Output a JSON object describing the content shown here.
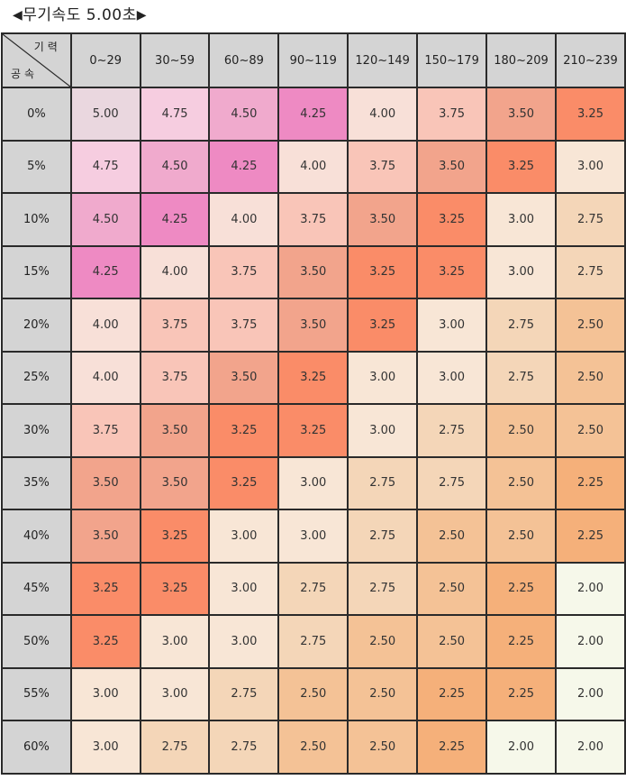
{
  "title": {
    "left_arrow": "◀",
    "text": "무기속도 5.00초",
    "right_arrow": "▶"
  },
  "table": {
    "corner_top": "기력",
    "corner_bottom": "공속",
    "columns": [
      "0~29",
      "30~59",
      "60~89",
      "90~119",
      "120~149",
      "150~179",
      "180~209",
      "210~239"
    ],
    "rows": [
      "0%",
      "5%",
      "10%",
      "15%",
      "20%",
      "25%",
      "30%",
      "35%",
      "40%",
      "45%",
      "50%",
      "55%",
      "60%"
    ],
    "values": [
      [
        "5.00",
        "4.75",
        "4.50",
        "4.25",
        "4.00",
        "3.75",
        "3.50",
        "3.25"
      ],
      [
        "4.75",
        "4.50",
        "4.25",
        "4.00",
        "3.75",
        "3.50",
        "3.25",
        "3.00"
      ],
      [
        "4.50",
        "4.25",
        "4.00",
        "3.75",
        "3.50",
        "3.25",
        "3.00",
        "2.75"
      ],
      [
        "4.25",
        "4.00",
        "3.75",
        "3.50",
        "3.25",
        "3.25",
        "3.00",
        "2.75"
      ],
      [
        "4.00",
        "3.75",
        "3.75",
        "3.50",
        "3.25",
        "3.00",
        "2.75",
        "2.50"
      ],
      [
        "4.00",
        "3.75",
        "3.50",
        "3.25",
        "3.00",
        "3.00",
        "2.75",
        "2.50"
      ],
      [
        "3.75",
        "3.50",
        "3.25",
        "3.25",
        "3.00",
        "2.75",
        "2.50",
        "2.50"
      ],
      [
        "3.50",
        "3.50",
        "3.25",
        "3.00",
        "2.75",
        "2.75",
        "2.50",
        "2.25"
      ],
      [
        "3.50",
        "3.25",
        "3.00",
        "3.00",
        "2.75",
        "2.50",
        "2.50",
        "2.25"
      ],
      [
        "3.25",
        "3.25",
        "3.00",
        "2.75",
        "2.75",
        "2.50",
        "2.25",
        "2.00"
      ],
      [
        "3.25",
        "3.00",
        "3.00",
        "2.75",
        "2.50",
        "2.50",
        "2.25",
        "2.00"
      ],
      [
        "3.00",
        "3.00",
        "2.75",
        "2.50",
        "2.50",
        "2.25",
        "2.25",
        "2.00"
      ],
      [
        "3.00",
        "2.75",
        "2.75",
        "2.50",
        "2.50",
        "2.25",
        "2.00",
        "2.00"
      ]
    ]
  },
  "colors": {
    "header_bg": "#d4d4d4",
    "grid_line": "#2a2a2a",
    "5.00": "#ead7df",
    "4.75": "#f6cde0",
    "4.50": "#f0aacd",
    "4.25": "#ee8ac3",
    "4.00": "#f8e0d8",
    "3.75": "#f9c5b8",
    "3.50": "#f2a48c",
    "3.25": "#fa8c68",
    "3.00": "#f8e6d6",
    "2.75": "#f4d6b8",
    "2.50": "#f4c296",
    "2.25": "#f5b07a",
    "2.00": "#f6f8ea"
  }
}
